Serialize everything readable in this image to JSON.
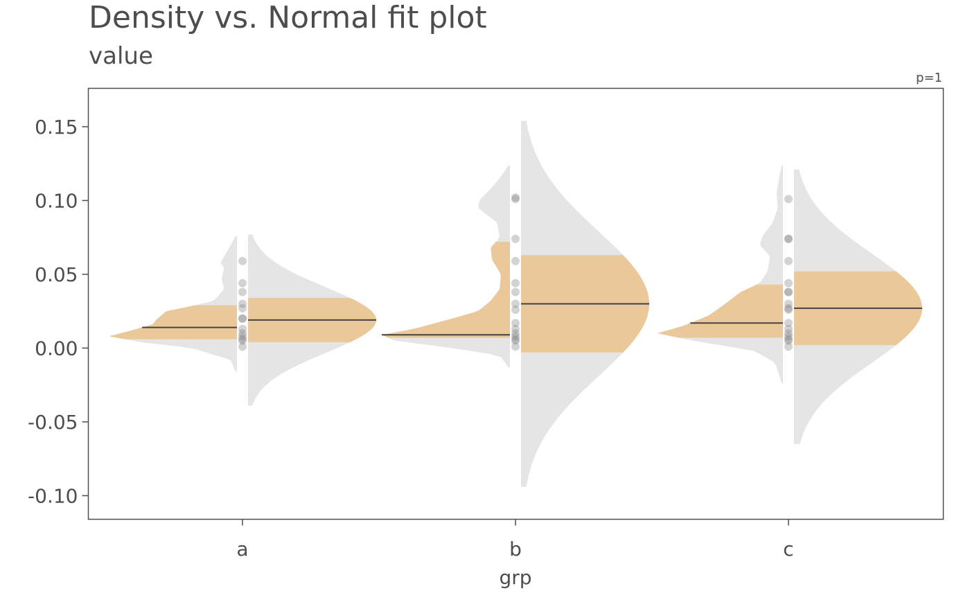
{
  "chart_data": {
    "type": "violin",
    "title": "Density vs. Normal fit plot",
    "subtitle": "value",
    "xlabel": "grp",
    "ylabel": "",
    "annotation": "p=1",
    "categories": [
      "a",
      "b",
      "c"
    ],
    "ylim": [
      -0.116,
      0.176
    ],
    "yticks": [
      {
        "value": 0.15,
        "label": "0.15"
      },
      {
        "value": 0.1,
        "label": "0.10"
      },
      {
        "value": 0.05,
        "label": "0.05"
      },
      {
        "value": 0.0,
        "label": "0.00"
      },
      {
        "value": -0.05,
        "label": "-0.05"
      },
      {
        "value": -0.1,
        "label": "-0.10"
      }
    ],
    "grid": false,
    "colors": {
      "density": "#e5e5e5",
      "quartile_fill": "#eac89a",
      "median": "#444444",
      "point": "#808080",
      "axis": "#4d4d4d"
    },
    "groups": [
      {
        "name": "a",
        "points": [
          0.059,
          0.044,
          0.038,
          0.03,
          0.027,
          0.02,
          0.02,
          0.013,
          0.01,
          0.008,
          0.006,
          0.005,
          0.001
        ],
        "density": {
          "median": 0.014,
          "q1": 0.006,
          "q3": 0.029,
          "min": -0.016,
          "max": 0.076,
          "shape": [
            [
              -0.016,
              0.01
            ],
            [
              -0.008,
              0.05
            ],
            [
              0.0,
              0.35
            ],
            [
              0.004,
              0.75
            ],
            [
              0.008,
              1.0
            ],
            [
              0.012,
              0.82
            ],
            [
              0.016,
              0.66
            ],
            [
              0.02,
              0.62
            ],
            [
              0.025,
              0.55
            ],
            [
              0.028,
              0.38
            ],
            [
              0.032,
              0.18
            ],
            [
              0.04,
              0.1
            ],
            [
              0.047,
              0.12
            ],
            [
              0.054,
              0.1
            ],
            [
              0.058,
              0.13
            ],
            [
              0.062,
              0.1
            ],
            [
              0.068,
              0.06
            ],
            [
              0.076,
              0.01
            ]
          ]
        },
        "normal": {
          "mean": 0.019,
          "q1": 0.004,
          "q3": 0.034,
          "min": -0.039,
          "max": 0.077
        }
      },
      {
        "name": "b",
        "points": [
          0.102,
          0.101,
          0.074,
          0.059,
          0.044,
          0.038,
          0.03,
          0.026,
          0.017,
          0.013,
          0.01,
          0.008,
          0.006,
          0.005,
          0.001
        ],
        "density": {
          "median": 0.009,
          "q1": 0.007,
          "q3": 0.072,
          "min": -0.013,
          "max": 0.124,
          "shape": [
            [
              -0.013,
              0.01
            ],
            [
              -0.005,
              0.08
            ],
            [
              0.0,
              0.45
            ],
            [
              0.005,
              0.9
            ],
            [
              0.009,
              1.0
            ],
            [
              0.013,
              0.75
            ],
            [
              0.02,
              0.45
            ],
            [
              0.025,
              0.25
            ],
            [
              0.032,
              0.15
            ],
            [
              0.04,
              0.08
            ],
            [
              0.05,
              0.07
            ],
            [
              0.06,
              0.14
            ],
            [
              0.068,
              0.15
            ],
            [
              0.075,
              0.08
            ],
            [
              0.085,
              0.1
            ],
            [
              0.095,
              0.25
            ],
            [
              0.1,
              0.24
            ],
            [
              0.108,
              0.15
            ],
            [
              0.115,
              0.08
            ],
            [
              0.124,
              0.01
            ]
          ]
        },
        "normal": {
          "mean": 0.03,
          "q1": -0.003,
          "q3": 0.063,
          "min": -0.094,
          "max": 0.154
        }
      },
      {
        "name": "c",
        "points": [
          0.101,
          0.074,
          0.074,
          0.059,
          0.044,
          0.038,
          0.038,
          0.03,
          0.027,
          0.026,
          0.017,
          0.013,
          0.01,
          0.008,
          0.006,
          0.005,
          0.001
        ],
        "density": {
          "median": 0.017,
          "q1": 0.007,
          "q3": 0.043,
          "min": -0.024,
          "max": 0.124,
          "shape": [
            [
              -0.024,
              0.01
            ],
            [
              -0.01,
              0.06
            ],
            [
              -0.002,
              0.22
            ],
            [
              0.005,
              0.7
            ],
            [
              0.01,
              0.98
            ],
            [
              0.015,
              0.78
            ],
            [
              0.022,
              0.58
            ],
            [
              0.03,
              0.45
            ],
            [
              0.038,
              0.33
            ],
            [
              0.044,
              0.18
            ],
            [
              0.052,
              0.12
            ],
            [
              0.062,
              0.1
            ],
            [
              0.07,
              0.18
            ],
            [
              0.076,
              0.16
            ],
            [
              0.085,
              0.08
            ],
            [
              0.095,
              0.04
            ],
            [
              0.105,
              0.05
            ],
            [
              0.115,
              0.03
            ],
            [
              0.124,
              0.01
            ]
          ]
        },
        "normal": {
          "mean": 0.027,
          "q1": 0.002,
          "q3": 0.052,
          "min": -0.065,
          "max": 0.121
        }
      }
    ]
  }
}
